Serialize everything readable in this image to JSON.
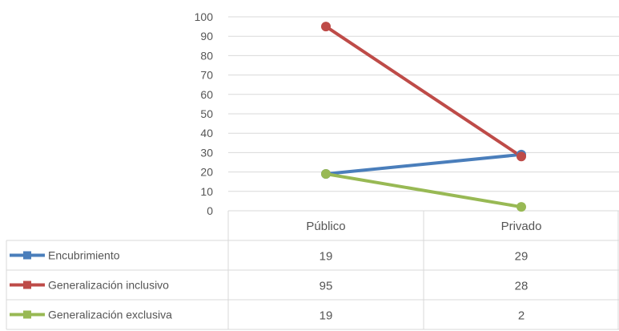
{
  "chart_data": {
    "type": "line",
    "categories": [
      "Público",
      "Privado"
    ],
    "ylim": [
      0,
      100
    ],
    "yticks": [
      0,
      10,
      20,
      30,
      40,
      50,
      60,
      70,
      80,
      90,
      100
    ],
    "grid": true,
    "data_table": true,
    "series": [
      {
        "name": "Encubrimiento",
        "values": [
          19,
          29
        ],
        "color": "#4a7ebb"
      },
      {
        "name": "Generalización inclusivo",
        "values": [
          95,
          28
        ],
        "color": "#be4b48"
      },
      {
        "name": "Generalización exclusiva",
        "values": [
          19,
          2
        ],
        "color": "#98b954"
      }
    ]
  }
}
